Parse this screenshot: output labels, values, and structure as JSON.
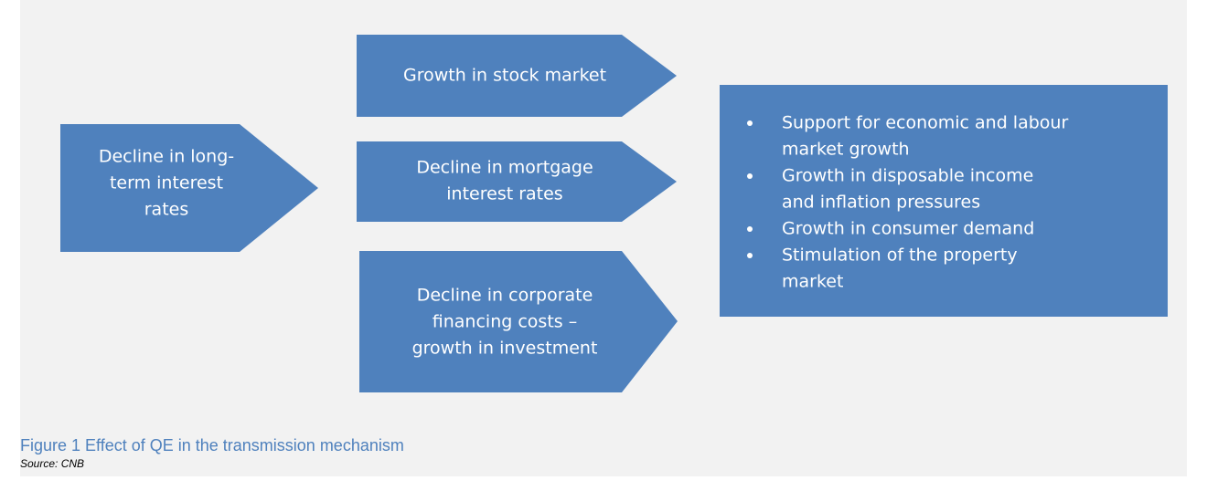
{
  "nodes": [
    {
      "lines": [
        "Decline in long-",
        "term interest",
        "rates"
      ]
    },
    {
      "lines": [
        "Growth in stock market"
      ]
    },
    {
      "lines": [
        "Decline in mortgage",
        "interest rates"
      ]
    },
    {
      "lines": [
        "Decline in corporate",
        "financing costs –",
        "growth in investment"
      ]
    }
  ],
  "effects": {
    "items": [
      {
        "lines": [
          "Support for economic and labour",
          "market growth"
        ]
      },
      {
        "lines": [
          "Growth in disposable  income",
          "and inflation pressures"
        ]
      },
      {
        "lines": [
          "Growth in consumer demand"
        ]
      },
      {
        "lines": [
          "Stimulation of the property",
          "market"
        ]
      }
    ]
  },
  "caption": {
    "title": "Figure 1 Effect of QE in the transmission mechanism",
    "source": "Source: CNB"
  }
}
